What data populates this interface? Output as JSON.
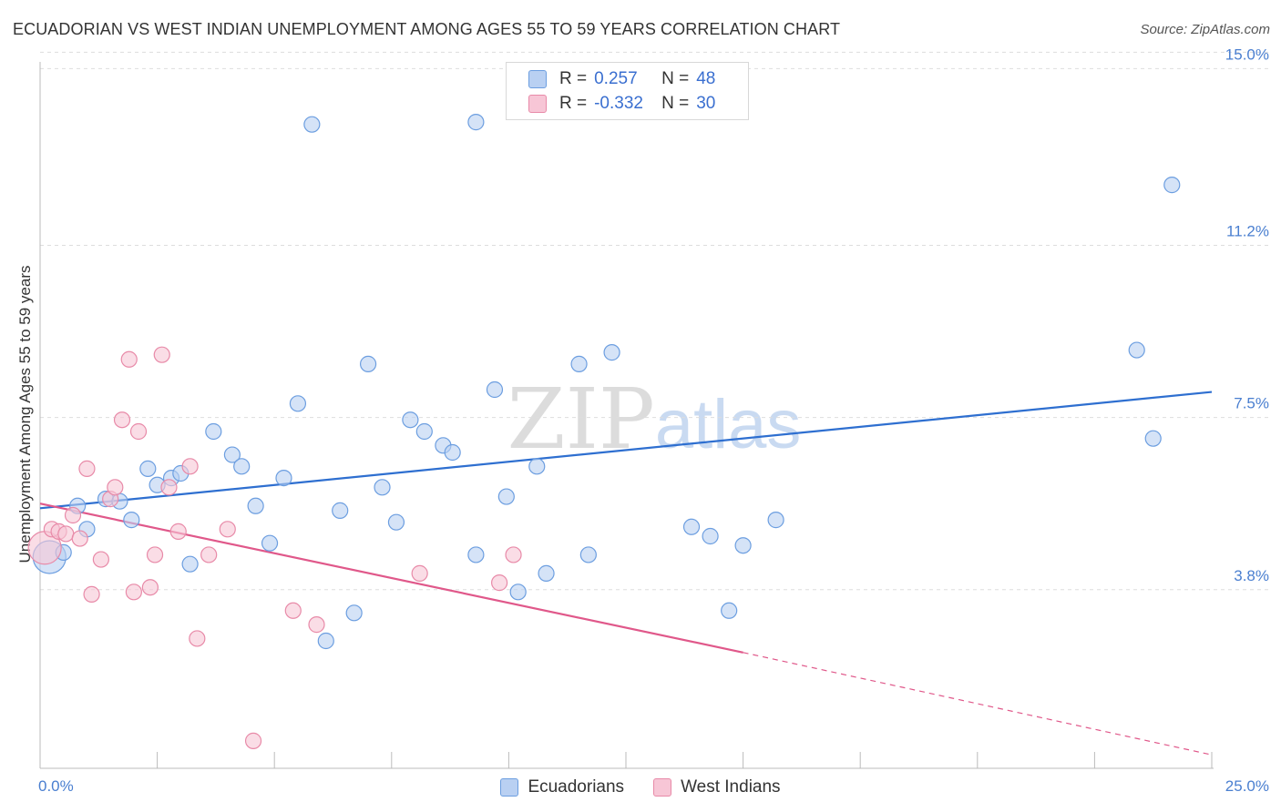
{
  "header": {
    "title": "ECUADORIAN VS WEST INDIAN UNEMPLOYMENT AMONG AGES 55 TO 59 YEARS CORRELATION CHART",
    "source": "Source: ZipAtlas.com"
  },
  "watermark": {
    "part1": "ZIP",
    "part2": "atlas"
  },
  "colors": {
    "blue_fill": "#b9d0f2",
    "blue_stroke": "#6c9ee0",
    "blue_line": "#2e6fd0",
    "pink_fill": "#f7c6d6",
    "pink_stroke": "#e88aa8",
    "pink_line": "#e0588a",
    "tick_text": "#4a7fd0",
    "grid": "#dddddd"
  },
  "legend": {
    "rows": [
      {
        "r_label": "R =",
        "r_value": "0.257",
        "n_label": "N =",
        "n_value": "48"
      },
      {
        "r_label": "R =",
        "r_value": "-0.332",
        "n_label": "N =",
        "n_value": "30"
      }
    ],
    "bottom": [
      "Ecuadorians",
      "West Indians"
    ]
  },
  "chart_data": {
    "type": "scatter",
    "title": "ECUADORIAN VS WEST INDIAN UNEMPLOYMENT AMONG AGES 55 TO 59 YEARS CORRELATION CHART",
    "xlabel": "",
    "ylabel": "Unemployment Among Ages 55 to 59 years",
    "xlim": [
      0,
      25
    ],
    "ylim": [
      0,
      15.3
    ],
    "x_tick_labels": [
      "0.0%",
      "25.0%"
    ],
    "y_ticks": [
      {
        "value": 3.8,
        "label": "3.8%"
      },
      {
        "value": 7.5,
        "label": "7.5%"
      },
      {
        "value": 11.2,
        "label": "11.2%"
      },
      {
        "value": 15.0,
        "label": "15.0%"
      }
    ],
    "series": [
      {
        "name": "Ecuadorians",
        "r": 0.257,
        "n": 48,
        "trend": {
          "x0": 0,
          "y0": 5.55,
          "x1": 25,
          "y1": 8.05
        },
        "points": [
          {
            "x": 0.2,
            "y": 4.5,
            "big": true
          },
          {
            "x": 0.5,
            "y": 4.6
          },
          {
            "x": 0.8,
            "y": 5.6
          },
          {
            "x": 1.0,
            "y": 5.1
          },
          {
            "x": 1.4,
            "y": 5.75
          },
          {
            "x": 1.7,
            "y": 5.7
          },
          {
            "x": 1.95,
            "y": 5.3
          },
          {
            "x": 2.3,
            "y": 6.4
          },
          {
            "x": 2.5,
            "y": 6.05
          },
          {
            "x": 2.8,
            "y": 6.2
          },
          {
            "x": 3.0,
            "y": 6.3
          },
          {
            "x": 3.2,
            "y": 4.35
          },
          {
            "x": 3.7,
            "y": 7.2
          },
          {
            "x": 4.1,
            "y": 6.7
          },
          {
            "x": 4.3,
            "y": 6.45
          },
          {
            "x": 4.6,
            "y": 5.6
          },
          {
            "x": 4.9,
            "y": 4.8
          },
          {
            "x": 5.2,
            "y": 6.2
          },
          {
            "x": 5.5,
            "y": 7.8
          },
          {
            "x": 5.8,
            "y": 13.8
          },
          {
            "x": 6.1,
            "y": 2.7
          },
          {
            "x": 6.4,
            "y": 5.5
          },
          {
            "x": 6.7,
            "y": 3.3
          },
          {
            "x": 7.0,
            "y": 8.65
          },
          {
            "x": 7.3,
            "y": 6.0
          },
          {
            "x": 7.6,
            "y": 5.25
          },
          {
            "x": 7.9,
            "y": 7.45
          },
          {
            "x": 8.2,
            "y": 7.2
          },
          {
            "x": 8.6,
            "y": 6.9
          },
          {
            "x": 8.8,
            "y": 6.75
          },
          {
            "x": 9.3,
            "y": 4.55
          },
          {
            "x": 9.3,
            "y": 13.85
          },
          {
            "x": 9.7,
            "y": 8.1
          },
          {
            "x": 9.95,
            "y": 5.8
          },
          {
            "x": 10.2,
            "y": 3.75
          },
          {
            "x": 10.6,
            "y": 6.45
          },
          {
            "x": 10.8,
            "y": 4.15
          },
          {
            "x": 11.5,
            "y": 8.65
          },
          {
            "x": 11.7,
            "y": 4.55
          },
          {
            "x": 12.2,
            "y": 8.9
          },
          {
            "x": 13.9,
            "y": 5.15
          },
          {
            "x": 14.3,
            "y": 4.95
          },
          {
            "x": 14.7,
            "y": 3.35
          },
          {
            "x": 15.0,
            "y": 4.75
          },
          {
            "x": 15.7,
            "y": 5.3
          },
          {
            "x": 23.4,
            "y": 8.95
          },
          {
            "x": 23.75,
            "y": 7.05
          },
          {
            "x": 24.15,
            "y": 12.5
          }
        ]
      },
      {
        "name": "West Indians",
        "r": -0.332,
        "n": 30,
        "trend": {
          "x0": 0,
          "y0": 5.65,
          "x1": 15.0,
          "y1": 2.45,
          "dash_x1": 25,
          "dash_y1": 0.25
        },
        "points": [
          {
            "x": 0.1,
            "y": 4.7,
            "big": true
          },
          {
            "x": 0.25,
            "y": 5.1
          },
          {
            "x": 0.4,
            "y": 5.05
          },
          {
            "x": 0.55,
            "y": 5.0
          },
          {
            "x": 0.7,
            "y": 5.4
          },
          {
            "x": 0.85,
            "y": 4.9
          },
          {
            "x": 1.0,
            "y": 6.4
          },
          {
            "x": 1.1,
            "y": 3.7
          },
          {
            "x": 1.3,
            "y": 4.45
          },
          {
            "x": 1.5,
            "y": 5.75
          },
          {
            "x": 1.6,
            "y": 6.0
          },
          {
            "x": 1.75,
            "y": 7.45
          },
          {
            "x": 1.9,
            "y": 8.75
          },
          {
            "x": 2.0,
            "y": 3.75
          },
          {
            "x": 2.1,
            "y": 7.2
          },
          {
            "x": 2.35,
            "y": 3.85
          },
          {
            "x": 2.45,
            "y": 4.55
          },
          {
            "x": 2.6,
            "y": 8.85
          },
          {
            "x": 2.75,
            "y": 6.0
          },
          {
            "x": 2.95,
            "y": 5.05
          },
          {
            "x": 3.2,
            "y": 6.45
          },
          {
            "x": 3.35,
            "y": 2.75
          },
          {
            "x": 3.6,
            "y": 4.55
          },
          {
            "x": 4.0,
            "y": 5.1
          },
          {
            "x": 4.55,
            "y": 0.55
          },
          {
            "x": 5.4,
            "y": 3.35
          },
          {
            "x": 5.9,
            "y": 3.05
          },
          {
            "x": 8.1,
            "y": 4.15
          },
          {
            "x": 9.8,
            "y": 3.95
          },
          {
            "x": 10.1,
            "y": 4.55
          }
        ]
      }
    ]
  }
}
